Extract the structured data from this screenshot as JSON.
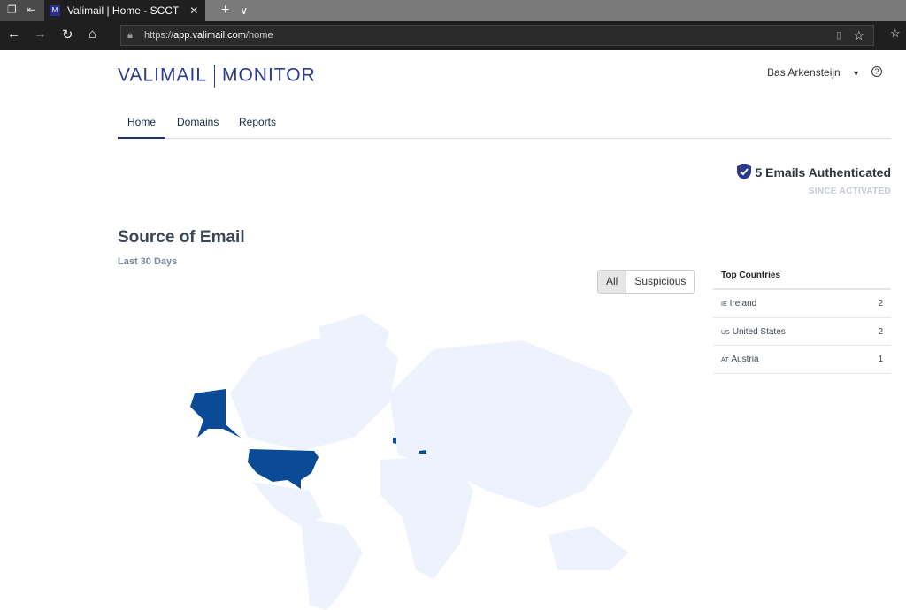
{
  "browser": {
    "tab_title": "Valimail | Home - SCCT",
    "url_scheme": "https://",
    "url_host": "app.valimail.com",
    "url_path": "/home"
  },
  "header": {
    "logo_left": "VALIMAIL",
    "logo_right": "MONITOR",
    "user": "Bas Arkensteijn",
    "help": "?"
  },
  "nav": {
    "items": [
      {
        "label": "Home",
        "active": true
      },
      {
        "label": "Domains"
      },
      {
        "label": "Reports"
      }
    ]
  },
  "auth": {
    "title": "5 Emails Authenticated",
    "subtitle": "SINCE ACTIVATED"
  },
  "source": {
    "title": "Source of Email",
    "period": "Last 30 Days",
    "filters": [
      "All",
      "Suspicious"
    ],
    "selected_filter": "All"
  },
  "top_countries": {
    "title": "Top Countries",
    "rows": [
      {
        "code": "IE",
        "name": "Ireland",
        "count": "2"
      },
      {
        "code": "US",
        "name": "United States",
        "count": "2"
      },
      {
        "code": "AT",
        "name": "Austria",
        "count": "1"
      }
    ]
  },
  "colors": {
    "highlight": "#0b4a95",
    "land": "#edf2fc",
    "brand": "#2b3a8c"
  }
}
